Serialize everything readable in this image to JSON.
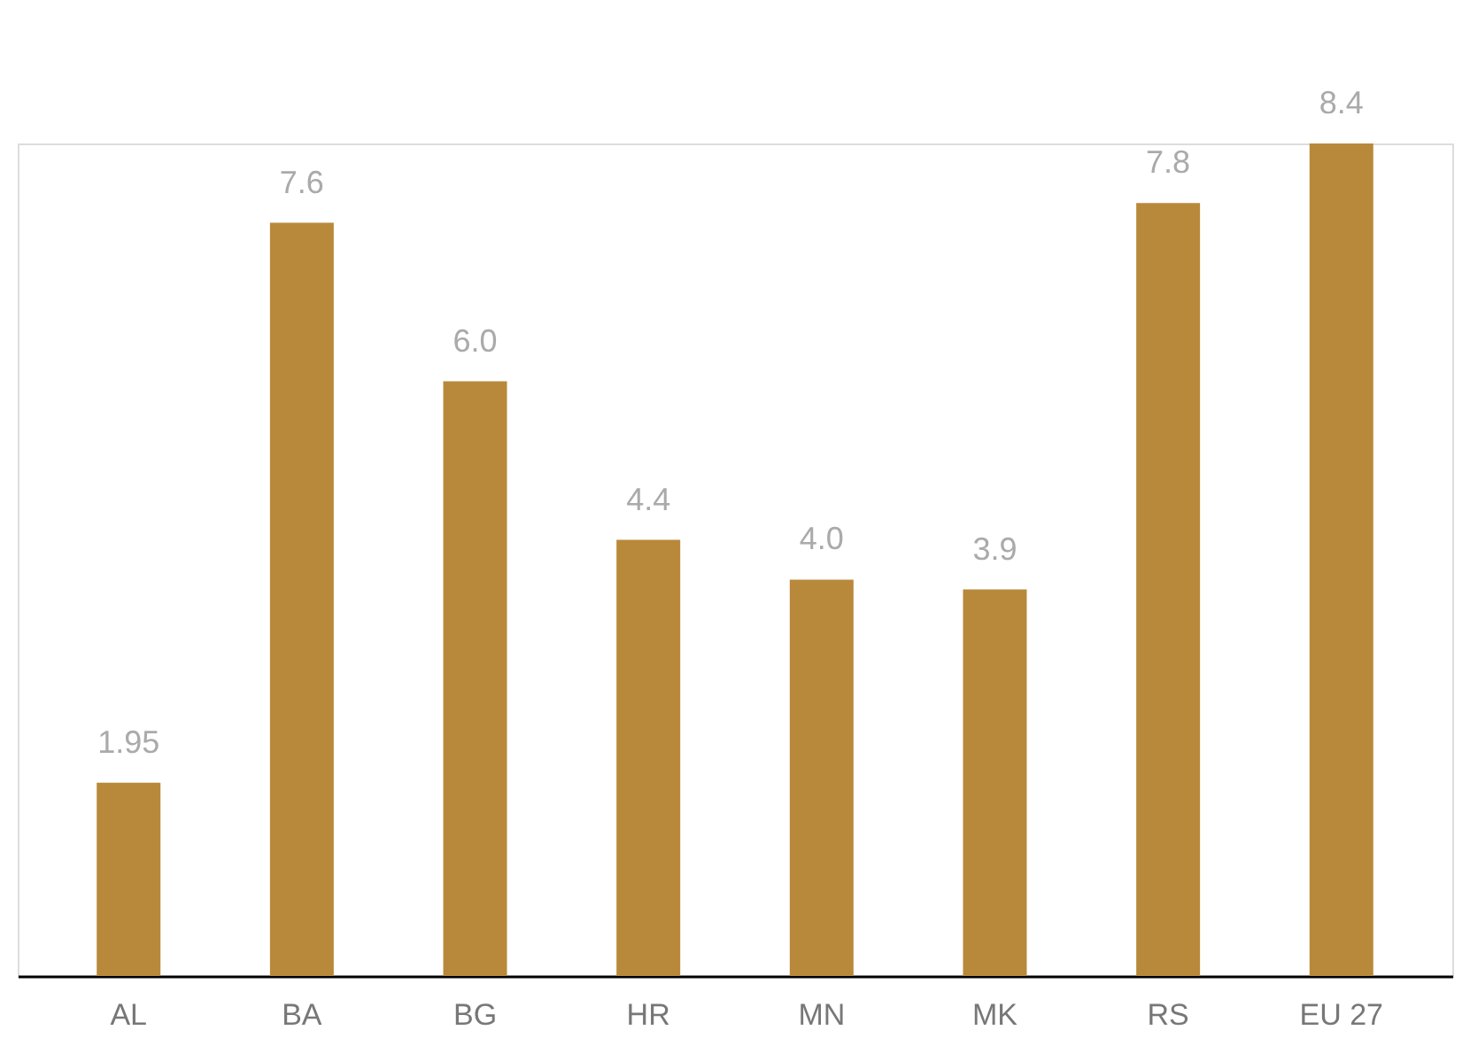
{
  "chart_data": {
    "type": "bar",
    "categories": [
      "AL",
      "BA",
      "BG",
      "HR",
      "MN",
      "MK",
      "RS",
      "EU 27"
    ],
    "values": [
      1.95,
      7.6,
      6.0,
      4.4,
      4.0,
      3.9,
      7.8,
      8.4
    ],
    "value_labels": [
      "1.95",
      "7.6",
      "6.0",
      "4.4",
      "4.0",
      "3.9",
      "7.8",
      "8.4"
    ],
    "color": "#b8893a",
    "grid": false
  }
}
